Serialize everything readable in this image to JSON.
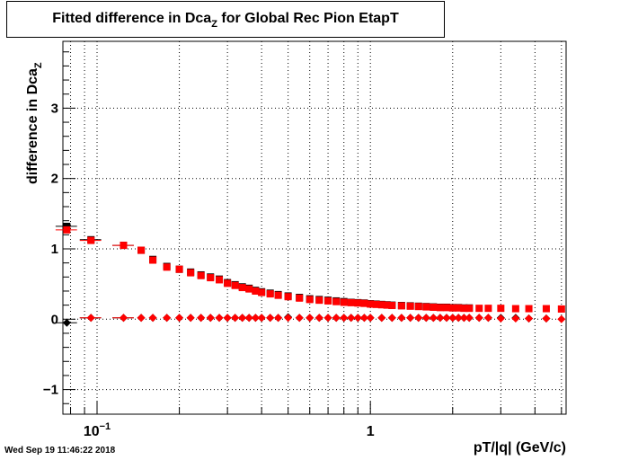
{
  "chart_data": {
    "type": "scatter",
    "title_main": "Fitted difference in Dca",
    "title_sub": "Z",
    "title_rest": " for Global Rec Pion EtapT",
    "ylabel_main": "difference in Dca",
    "ylabel_sub": "Z",
    "xlabel": "pT/|q| (GeV/c)",
    "x_scale": "log",
    "xlim": [
      0.075,
      5.2
    ],
    "ylim": [
      -1.35,
      3.95
    ],
    "grid": true,
    "x_ticks": [
      {
        "value": 0.1,
        "label": "10",
        "sup": "−1"
      },
      {
        "value": 1,
        "label": "1",
        "sup": ""
      }
    ],
    "y_ticks": [
      {
        "value": -1,
        "label": "−1"
      },
      {
        "value": 0,
        "label": "0"
      },
      {
        "value": 1,
        "label": "1"
      },
      {
        "value": 2,
        "label": "2"
      },
      {
        "value": 3,
        "label": "3"
      }
    ],
    "series": [
      {
        "color": "#000000",
        "marker": "square",
        "x": [
          0.0775,
          0.095,
          0.125,
          0.145,
          0.16,
          0.18,
          0.2,
          0.22,
          0.24,
          0.26,
          0.28,
          0.3,
          0.32,
          0.34,
          0.36,
          0.38,
          0.4,
          0.43,
          0.46,
          0.5,
          0.55,
          0.6,
          0.65,
          0.7,
          0.75,
          0.8,
          0.85,
          0.9,
          0.95,
          1.0,
          1.05,
          1.1,
          1.15,
          1.2,
          1.3,
          1.4,
          1.5,
          1.6,
          1.7,
          1.8,
          1.9,
          2.0,
          2.1,
          2.2,
          2.3
        ],
        "y": [
          1.32,
          1.13,
          1.05,
          0.98,
          0.85,
          0.75,
          0.71,
          0.67,
          0.63,
          0.6,
          0.57,
          0.52,
          0.49,
          0.46,
          0.44,
          0.41,
          0.39,
          0.37,
          0.35,
          0.33,
          0.31,
          0.29,
          0.28,
          0.27,
          0.26,
          0.25,
          0.24,
          0.235,
          0.23,
          0.22,
          0.215,
          0.21,
          0.205,
          0.2,
          0.195,
          0.19,
          0.185,
          0.18,
          0.175,
          0.17,
          0.17,
          0.165,
          0.165,
          0.16,
          0.16
        ]
      },
      {
        "color": "#ff0000",
        "marker": "square",
        "x": [
          0.0775,
          0.095,
          0.125,
          0.145,
          0.16,
          0.18,
          0.2,
          0.22,
          0.24,
          0.26,
          0.28,
          0.3,
          0.32,
          0.34,
          0.36,
          0.38,
          0.4,
          0.43,
          0.46,
          0.5,
          0.55,
          0.6,
          0.65,
          0.7,
          0.75,
          0.8,
          0.85,
          0.9,
          0.95,
          1.0,
          1.05,
          1.1,
          1.15,
          1.2,
          1.3,
          1.4,
          1.5,
          1.6,
          1.7,
          1.8,
          1.9,
          2.0,
          2.1,
          2.2,
          2.3,
          2.5,
          2.7,
          3.0,
          3.4,
          3.8,
          4.4,
          5.0
        ],
        "y": [
          1.27,
          1.12,
          1.05,
          0.98,
          0.84,
          0.74,
          0.71,
          0.66,
          0.62,
          0.59,
          0.56,
          0.51,
          0.48,
          0.45,
          0.43,
          0.4,
          0.38,
          0.36,
          0.34,
          0.32,
          0.3,
          0.28,
          0.27,
          0.26,
          0.25,
          0.24,
          0.235,
          0.23,
          0.225,
          0.215,
          0.21,
          0.205,
          0.2,
          0.195,
          0.19,
          0.185,
          0.18,
          0.175,
          0.17,
          0.165,
          0.165,
          0.16,
          0.16,
          0.155,
          0.155,
          0.155,
          0.155,
          0.155,
          0.15,
          0.15,
          0.15,
          0.145
        ]
      },
      {
        "color": "#000000",
        "marker": "diamond",
        "x": [
          0.0775,
          0.095,
          0.125,
          0.145,
          0.16,
          0.18,
          0.2,
          0.22,
          0.24,
          0.26,
          0.28,
          0.3,
          0.32,
          0.34,
          0.36,
          0.38,
          0.4,
          0.43,
          0.46,
          0.5,
          0.55,
          0.6,
          0.65,
          0.7,
          0.75,
          0.8,
          0.85,
          0.9,
          0.95,
          1.0,
          1.1,
          1.2,
          1.3,
          1.4,
          1.5,
          1.6,
          1.7,
          1.8,
          1.9,
          2.0,
          2.1,
          2.2,
          2.3,
          2.5,
          2.7,
          3.0,
          3.4,
          3.8,
          4.4
        ],
        "y": [
          -0.05,
          0.02,
          0.02,
          0.02,
          0.02,
          0.02,
          0.02,
          0.02,
          0.02,
          0.02,
          0.02,
          0.02,
          0.02,
          0.02,
          0.02,
          0.02,
          0.02,
          0.02,
          0.02,
          0.03,
          0.02,
          0.02,
          0.02,
          0.02,
          0.02,
          0.02,
          0.02,
          0.02,
          0.02,
          0.02,
          0.02,
          0.02,
          0.02,
          0.02,
          0.02,
          0.02,
          0.02,
          0.02,
          0.02,
          0.02,
          0.02,
          0.02,
          0.02,
          0.02,
          0.02,
          0.02,
          0.02,
          0.01,
          0.01
        ]
      },
      {
        "color": "#ff0000",
        "marker": "diamond",
        "x": [
          0.095,
          0.125,
          0.145,
          0.16,
          0.18,
          0.2,
          0.22,
          0.24,
          0.26,
          0.28,
          0.3,
          0.32,
          0.34,
          0.36,
          0.38,
          0.4,
          0.43,
          0.46,
          0.5,
          0.55,
          0.6,
          0.65,
          0.7,
          0.75,
          0.8,
          0.85,
          0.9,
          0.95,
          1.0,
          1.1,
          1.2,
          1.3,
          1.4,
          1.5,
          1.6,
          1.7,
          1.8,
          1.9,
          2.0,
          2.1,
          2.2,
          2.3,
          2.5,
          2.7,
          3.0,
          3.4,
          3.8,
          4.4,
          5.0
        ],
        "y": [
          0.02,
          0.02,
          0.02,
          0.02,
          0.02,
          0.02,
          0.02,
          0.02,
          0.02,
          0.02,
          0.02,
          0.02,
          0.02,
          0.02,
          0.02,
          0.02,
          0.02,
          0.02,
          0.02,
          0.02,
          0.02,
          0.02,
          0.02,
          0.02,
          0.02,
          0.02,
          0.02,
          0.02,
          0.02,
          0.02,
          0.02,
          0.02,
          0.02,
          0.02,
          0.02,
          0.02,
          0.02,
          0.02,
          0.02,
          0.02,
          0.02,
          0.02,
          0.02,
          0.02,
          0.01,
          0.01,
          0.01,
          0.01,
          0.0
        ]
      }
    ]
  },
  "timestamp": "Wed Sep 19 11:46:22 2018"
}
